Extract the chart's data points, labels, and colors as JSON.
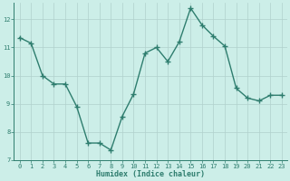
{
  "x": [
    0,
    1,
    2,
    3,
    4,
    5,
    6,
    7,
    8,
    9,
    10,
    11,
    12,
    13,
    14,
    15,
    16,
    17,
    18,
    19,
    20,
    21,
    22,
    23
  ],
  "y": [
    11.35,
    11.15,
    10.0,
    9.7,
    9.7,
    8.9,
    7.6,
    7.6,
    7.35,
    8.55,
    9.35,
    10.8,
    11.0,
    10.5,
    11.2,
    12.4,
    11.8,
    11.4,
    11.05,
    9.55,
    9.2,
    9.1,
    9.3,
    9.3
  ],
  "line_color": "#2e7d6e",
  "bg_color": "#cceee8",
  "grid_color_major": "#b0d0cc",
  "xlim": [
    -0.5,
    23.5
  ],
  "ylim": [
    7.0,
    12.6
  ],
  "yticks": [
    7,
    8,
    9,
    10,
    11,
    12
  ],
  "xticks": [
    0,
    1,
    2,
    3,
    4,
    5,
    6,
    7,
    8,
    9,
    10,
    11,
    12,
    13,
    14,
    15,
    16,
    17,
    18,
    19,
    20,
    21,
    22,
    23
  ],
  "xlabel": "Humidex (Indice chaleur)",
  "marker": "+",
  "marker_size": 4.0,
  "line_width": 1.0,
  "tick_fontsize": 5.0,
  "xlabel_fontsize": 6.0
}
